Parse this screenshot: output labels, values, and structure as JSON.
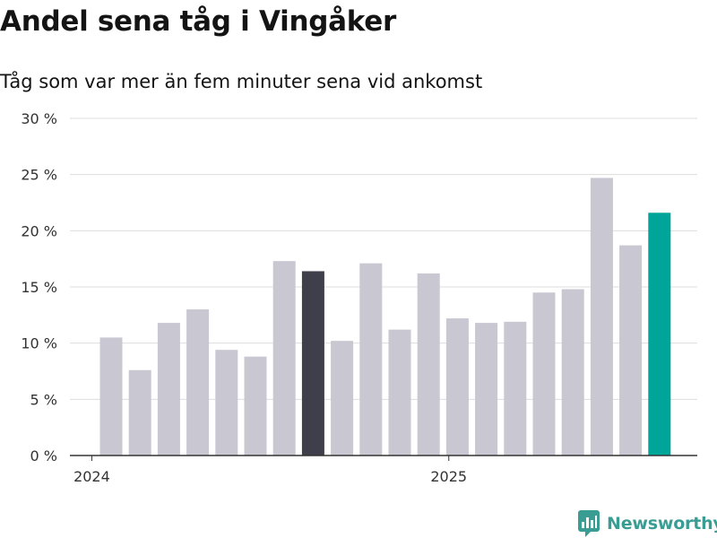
{
  "header": {
    "title": "Andel sena tåg i Vingåker",
    "subtitle": "Tåg som var mer än fem minuter sena vid ankomst"
  },
  "brand": {
    "name": "Newsworthy"
  },
  "colors": {
    "bar_default": "#c8c7d2",
    "bar_highlight_dark": "#3f3f4b",
    "bar_highlight_accent": "#00a59a",
    "gridline": "#dddddd",
    "axis": "#333333",
    "brand": "#3a9d93"
  },
  "chart_data": {
    "type": "bar",
    "title": "Andel sena tåg i Vingåker",
    "subtitle": "Tåg som var mer än fem minuter sena vid ankomst",
    "xlabel": "",
    "ylabel": "",
    "unit": "%",
    "ylim": [
      0,
      30
    ],
    "y_ticks": [
      0,
      5,
      10,
      15,
      20,
      25,
      30
    ],
    "y_tick_labels": [
      "0 %",
      "5 %",
      "10 %",
      "15 %",
      "20 %",
      "25 %",
      "30 %"
    ],
    "x_tick_labels": [
      {
        "label": "2024",
        "at_index": -0.67
      },
      {
        "label": "2025",
        "at_index": 11.7
      }
    ],
    "grid": true,
    "values": [
      10.5,
      7.6,
      11.8,
      13.0,
      9.4,
      8.8,
      17.3,
      16.4,
      10.2,
      17.1,
      11.2,
      16.2,
      12.2,
      11.8,
      11.9,
      14.5,
      14.8,
      24.7,
      18.7,
      21.6
    ],
    "highlights": [
      {
        "index": 7,
        "color_key": "bar_highlight_dark"
      },
      {
        "index": 19,
        "color_key": "bar_highlight_accent"
      }
    ]
  }
}
